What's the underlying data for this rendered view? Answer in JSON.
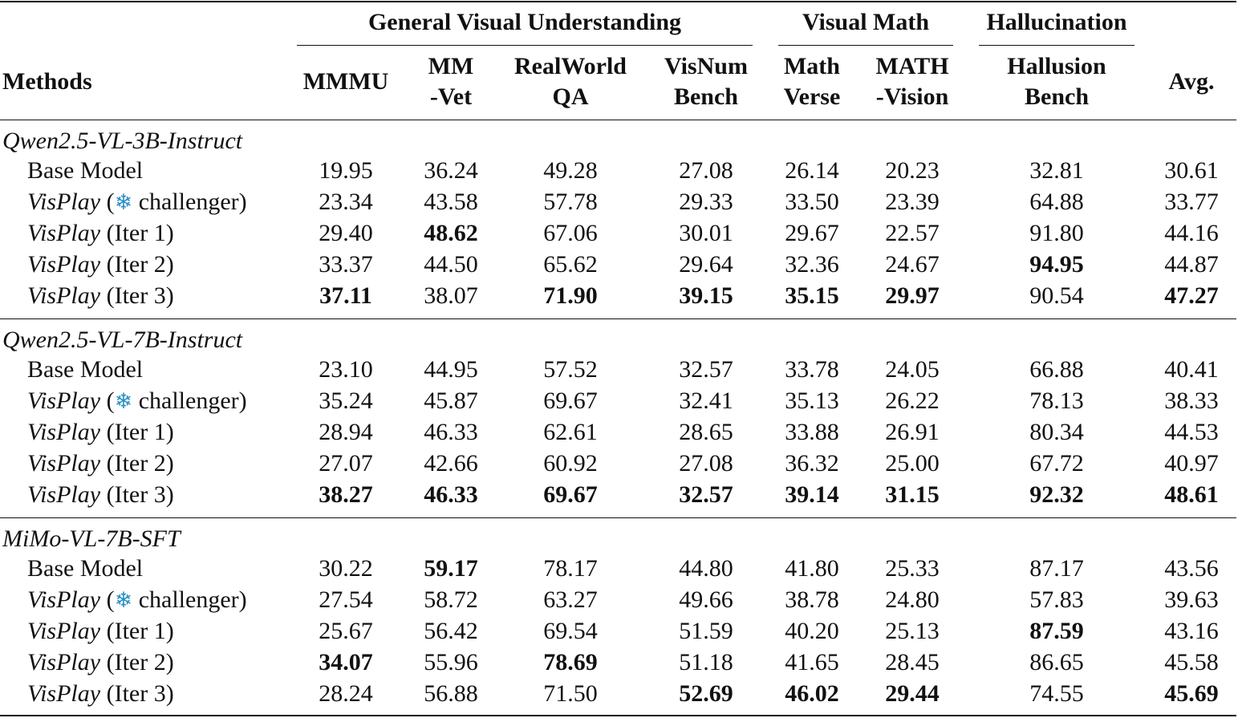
{
  "header": {
    "methods_label": "Methods",
    "groups": [
      {
        "label": "General Visual Understanding"
      },
      {
        "label": "Visual Math"
      },
      {
        "label": "Hallucination"
      }
    ],
    "columns": [
      {
        "line1": "MMMU",
        "line2": ""
      },
      {
        "line1": "MM",
        "line2": "-Vet"
      },
      {
        "line1": "RealWorld",
        "line2": "QA"
      },
      {
        "line1": "VisNum",
        "line2": "Bench"
      },
      {
        "line1": "Math",
        "line2": "Verse"
      },
      {
        "line1": "MATH",
        "line2": "-Vision"
      },
      {
        "line1": "Hallusion",
        "line2": "Bench"
      },
      {
        "line1": "Avg.",
        "line2": ""
      }
    ]
  },
  "sections": [
    {
      "name": "Qwen2.5-VL-3B-Instruct",
      "rows": [
        {
          "prefix": "",
          "suffix": "Base Model",
          "snow": false,
          "values": [
            "19.95",
            "36.24",
            "49.28",
            "27.08",
            "26.14",
            "20.23",
            "32.81",
            "30.61"
          ],
          "bold": [
            false,
            false,
            false,
            false,
            false,
            false,
            false,
            false
          ]
        },
        {
          "prefix": "VisPlay",
          "suffix": " (",
          "snow": true,
          "after": " challenger)",
          "values": [
            "23.34",
            "43.58",
            "57.78",
            "29.33",
            "33.50",
            "23.39",
            "64.88",
            "33.77"
          ],
          "bold": [
            false,
            false,
            false,
            false,
            false,
            false,
            false,
            false
          ]
        },
        {
          "prefix": "VisPlay",
          "suffix": " (Iter 1)",
          "snow": false,
          "values": [
            "29.40",
            "48.62",
            "67.06",
            "30.01",
            "29.67",
            "22.57",
            "91.80",
            "44.16"
          ],
          "bold": [
            false,
            true,
            false,
            false,
            false,
            false,
            false,
            false
          ]
        },
        {
          "prefix": "VisPlay",
          "suffix": " (Iter 2)",
          "snow": false,
          "values": [
            "33.37",
            "44.50",
            "65.62",
            "29.64",
            "32.36",
            "24.67",
            "94.95",
            "44.87"
          ],
          "bold": [
            false,
            false,
            false,
            false,
            false,
            false,
            true,
            false
          ]
        },
        {
          "prefix": "VisPlay",
          "suffix": " (Iter 3)",
          "snow": false,
          "values": [
            "37.11",
            "38.07",
            "71.90",
            "39.15",
            "35.15",
            "29.97",
            "90.54",
            "47.27"
          ],
          "bold": [
            true,
            false,
            true,
            true,
            true,
            true,
            false,
            true
          ]
        }
      ]
    },
    {
      "name": "Qwen2.5-VL-7B-Instruct",
      "rows": [
        {
          "prefix": "",
          "suffix": "Base Model",
          "snow": false,
          "values": [
            "23.10",
            "44.95",
            "57.52",
            "32.57",
            "33.78",
            "24.05",
            "66.88",
            "40.41"
          ],
          "bold": [
            false,
            false,
            false,
            false,
            false,
            false,
            false,
            false
          ]
        },
        {
          "prefix": "VisPlay",
          "suffix": " (",
          "snow": true,
          "after": " challenger)",
          "values": [
            "35.24",
            "45.87",
            "69.67",
            "32.41",
            "35.13",
            "26.22",
            "78.13",
            "38.33"
          ],
          "bold": [
            false,
            false,
            false,
            false,
            false,
            false,
            false,
            false
          ]
        },
        {
          "prefix": "VisPlay",
          "suffix": " (Iter 1)",
          "snow": false,
          "values": [
            "28.94",
            "46.33",
            "62.61",
            "28.65",
            "33.88",
            "26.91",
            "80.34",
            "44.53"
          ],
          "bold": [
            false,
            false,
            false,
            false,
            false,
            false,
            false,
            false
          ]
        },
        {
          "prefix": "VisPlay",
          "suffix": " (Iter 2)",
          "snow": false,
          "values": [
            "27.07",
            "42.66",
            "60.92",
            "27.08",
            "36.32",
            "25.00",
            "67.72",
            "40.97"
          ],
          "bold": [
            false,
            false,
            false,
            false,
            false,
            false,
            false,
            false
          ]
        },
        {
          "prefix": "VisPlay",
          "suffix": " (Iter 3)",
          "snow": false,
          "values": [
            "38.27",
            "46.33",
            "69.67",
            "32.57",
            "39.14",
            "31.15",
            "92.32",
            "48.61"
          ],
          "bold": [
            true,
            true,
            true,
            true,
            true,
            true,
            true,
            true
          ]
        }
      ]
    },
    {
      "name": "MiMo-VL-7B-SFT",
      "rows": [
        {
          "prefix": "",
          "suffix": "Base Model",
          "snow": false,
          "values": [
            "30.22",
            "59.17",
            "78.17",
            "44.80",
            "41.80",
            "25.33",
            "87.17",
            "43.56"
          ],
          "bold": [
            false,
            true,
            false,
            false,
            false,
            false,
            false,
            false
          ]
        },
        {
          "prefix": "VisPlay",
          "suffix": " (",
          "snow": true,
          "after": " challenger)",
          "values": [
            "27.54",
            "58.72",
            "63.27",
            "49.66",
            "38.78",
            "24.80",
            "57.83",
            "39.63"
          ],
          "bold": [
            false,
            false,
            false,
            false,
            false,
            false,
            false,
            false
          ]
        },
        {
          "prefix": "VisPlay",
          "suffix": " (Iter 1)",
          "snow": false,
          "values": [
            "25.67",
            "56.42",
            "69.54",
            "51.59",
            "40.20",
            "25.13",
            "87.59",
            "43.16"
          ],
          "bold": [
            false,
            false,
            false,
            false,
            false,
            false,
            true,
            false
          ]
        },
        {
          "prefix": "VisPlay",
          "suffix": " (Iter 2)",
          "snow": false,
          "values": [
            "34.07",
            "55.96",
            "78.69",
            "51.18",
            "41.65",
            "28.45",
            "86.65",
            "45.58"
          ],
          "bold": [
            true,
            false,
            true,
            false,
            false,
            false,
            false,
            false
          ]
        },
        {
          "prefix": "VisPlay",
          "suffix": " (Iter 3)",
          "snow": false,
          "values": [
            "28.24",
            "56.88",
            "71.50",
            "52.69",
            "46.02",
            "29.44",
            "74.55",
            "45.69"
          ],
          "bold": [
            false,
            false,
            false,
            true,
            true,
            true,
            false,
            true
          ]
        }
      ]
    }
  ],
  "snowflake_icon": "snowflake-icon"
}
